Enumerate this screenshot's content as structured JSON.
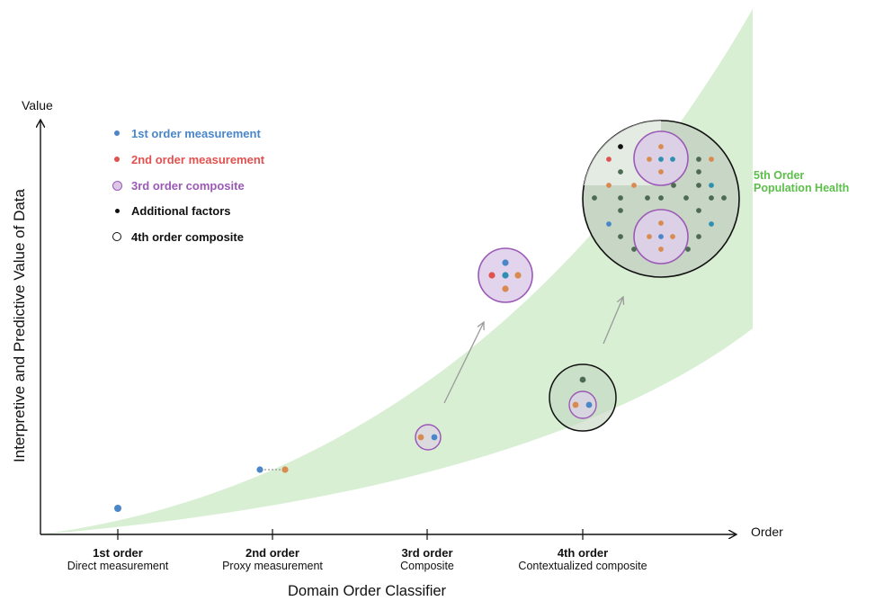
{
  "axes": {
    "y_label": "Value",
    "x_label": "Order",
    "y_title": "Interpretive and Predictive Value of Data",
    "x_title": "Domain Order Classifier"
  },
  "legend": [
    {
      "label": "1st order measurement",
      "color": "#4a86c8",
      "marker": "dot"
    },
    {
      "label": "2nd order measurement",
      "color": "#e0524f",
      "marker": "dot"
    },
    {
      "label": "3rd order composite",
      "color": "#9b59b6",
      "marker": "ring-filled"
    },
    {
      "label": "Additional factors",
      "color": "#111111",
      "marker": "dot"
    },
    {
      "label": "4th order composite",
      "color": "#111111",
      "marker": "ring"
    }
  ],
  "legend_text_colors": [
    "#4a86c8",
    "#e0524f",
    "#9b59b6",
    "#111111",
    "#111111"
  ],
  "ticks": [
    {
      "title": "1st order",
      "subtitle": "Direct measurement"
    },
    {
      "title": "2nd order",
      "subtitle": "Proxy measurement"
    },
    {
      "title": "3rd order",
      "subtitle": "Composite"
    },
    {
      "title": "4th order",
      "subtitle": "Contextualized composite"
    }
  ],
  "fifth_order": {
    "line1": "5th Order",
    "line2": "Population Health",
    "color": "#5cbf4a"
  },
  "colors": {
    "band": "#d8efd4",
    "blue": "#4a86c8",
    "red": "#e0524f",
    "orange": "#d98a4e",
    "purple": "#9b59b6",
    "teal": "#2f8fb0",
    "dark_green": "#4d6b53",
    "arrow": "#9a9a9a"
  }
}
